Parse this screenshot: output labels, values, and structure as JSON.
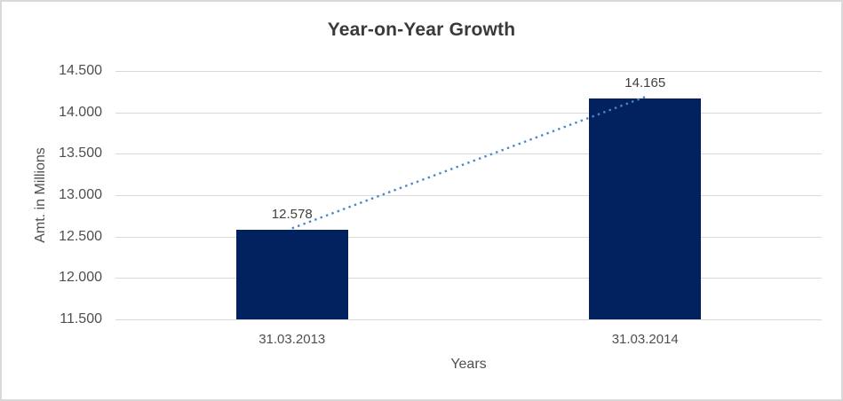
{
  "chart": {
    "title": "Year-on-Year Growth",
    "x_axis_title": "Years",
    "y_axis_title": "Amt. in Millions"
  },
  "chart_data": {
    "type": "bar",
    "title": "Year-on-Year Growth",
    "xlabel": "Years",
    "ylabel": "Amt. in Millions",
    "categories": [
      "31.03.2013",
      "31.03.2014"
    ],
    "series": [
      {
        "name": "Amt. in Millions",
        "values": [
          12.578,
          14.165
        ]
      }
    ],
    "data_labels": [
      "12.578",
      "14.165"
    ],
    "ylim": [
      11.5,
      14.5
    ],
    "ytick_step": 0.5,
    "ytick_labels": [
      "11.500",
      "12.000",
      "12.500",
      "13.000",
      "13.500",
      "14.000",
      "14.500"
    ],
    "grid": true,
    "legend": "none",
    "trendline": {
      "type": "linear",
      "style": "dotted"
    },
    "colors": {
      "bar": "#02215f",
      "trendline": "#4a86c8",
      "gridline": "#d9d9d9",
      "border": "#d9d9d9",
      "background": "#ffffff",
      "title_text": "#3a3a3a",
      "axis_text": "#4f4f4f",
      "data_label_text": "#404040"
    }
  }
}
